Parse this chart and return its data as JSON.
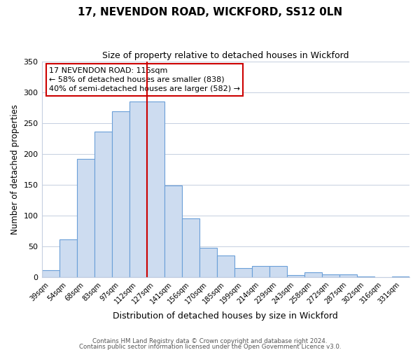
{
  "title": "17, NEVENDON ROAD, WICKFORD, SS12 0LN",
  "subtitle": "Size of property relative to detached houses in Wickford",
  "xlabel": "Distribution of detached houses by size in Wickford",
  "ylabel": "Number of detached properties",
  "bar_labels": [
    "39sqm",
    "54sqm",
    "68sqm",
    "83sqm",
    "97sqm",
    "112sqm",
    "127sqm",
    "141sqm",
    "156sqm",
    "170sqm",
    "185sqm",
    "199sqm",
    "214sqm",
    "229sqm",
    "243sqm",
    "258sqm",
    "272sqm",
    "287sqm",
    "302sqm",
    "316sqm",
    "331sqm"
  ],
  "bar_heights": [
    12,
    62,
    192,
    237,
    270,
    285,
    285,
    149,
    96,
    48,
    35,
    15,
    18,
    19,
    4,
    8,
    5,
    5,
    1,
    0,
    2
  ],
  "bar_color": "#cddcf0",
  "bar_edge_color": "#6a9fd8",
  "vline_x_index": 5,
  "vline_color": "#cc0000",
  "annotation_title": "17 NEVENDON ROAD: 116sqm",
  "annotation_line1": "← 58% of detached houses are smaller (838)",
  "annotation_line2": "40% of semi-detached houses are larger (582) →",
  "annotation_box_edge_color": "#cc0000",
  "ylim": [
    0,
    350
  ],
  "yticks": [
    0,
    50,
    100,
    150,
    200,
    250,
    300,
    350
  ],
  "footer1": "Contains HM Land Registry data © Crown copyright and database right 2024.",
  "footer2": "Contains public sector information licensed under the Open Government Licence v3.0.",
  "fig_width": 6.0,
  "fig_height": 5.0,
  "dpi": 100
}
